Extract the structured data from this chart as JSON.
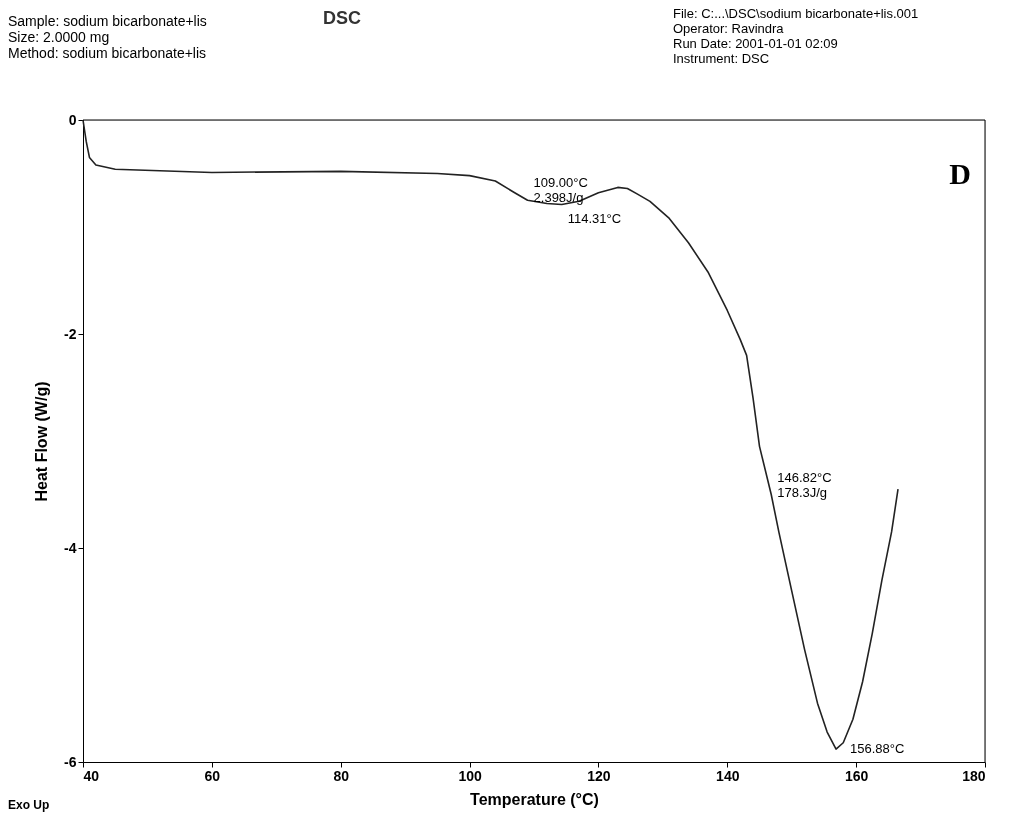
{
  "chart_data": {
    "type": "line",
    "title": "DSC",
    "xlabel": "Temperature (°C)",
    "ylabel": "Heat Flow (W/g)",
    "x": [
      40,
      40.5,
      41,
      42,
      45,
      60,
      80,
      95,
      100,
      104,
      107,
      109,
      112,
      114.31,
      117,
      120,
      123,
      124.5,
      126,
      128,
      131,
      134,
      137,
      140,
      142,
      143,
      144,
      145,
      146.82,
      148,
      150,
      152,
      154,
      155.5,
      156.88,
      158,
      159.5,
      161,
      162.5,
      164,
      165.5,
      166.5
    ],
    "series": [
      {
        "color": "#222222",
        "values": [
          0,
          -0.2,
          -0.35,
          -0.42,
          -0.46,
          -0.49,
          -0.48,
          -0.5,
          -0.52,
          -0.57,
          -0.68,
          -0.75,
          -0.78,
          -0.79,
          -0.76,
          -0.68,
          -0.63,
          -0.64,
          -0.69,
          -0.76,
          -0.92,
          -1.15,
          -1.42,
          -1.78,
          -2.05,
          -2.2,
          -2.6,
          -3.05,
          -3.5,
          -3.85,
          -4.4,
          -4.95,
          -5.45,
          -5.72,
          -5.88,
          -5.82,
          -5.6,
          -5.25,
          -4.8,
          -4.3,
          -3.85,
          -3.45
        ]
      }
    ],
    "xlim": [
      40,
      180
    ],
    "xticks": [
      40,
      60,
      80,
      100,
      120,
      140,
      160,
      180
    ],
    "ylim": [
      -6,
      0
    ],
    "yticks": [
      {
        "value": 0,
        "label": "0"
      },
      {
        "value": -2,
        "label": "-2"
      },
      {
        "value": -4,
        "label": "-4"
      },
      {
        "value": -6,
        "label": "-6"
      }
    ],
    "grid": false,
    "marker": "none",
    "line_style": "solid",
    "annotations": [
      "Sample: sodium bicarbonate+lis\nSize: 2.0000 mg\nMethod: sodium bicarbonate+lis",
      "File: C:...\\DSC\\sodium bicarbonate+lis.001\nOperator: Ravindra\nRun Date: 2001-01-01 02:09\nInstrument: DSC",
      "Exo Up",
      "D",
      {
        "text": "109.00°C\n2.398J/g",
        "x": 109,
        "y": -0.75
      },
      {
        "text": "114.31°C",
        "x": 114.31,
        "y": -0.79
      },
      {
        "text": "146.82°C\n178.3J/g",
        "x": 146.82,
        "y": -3.5
      },
      {
        "text": "156.88°C",
        "x": 156.88,
        "y": -5.88
      }
    ]
  }
}
